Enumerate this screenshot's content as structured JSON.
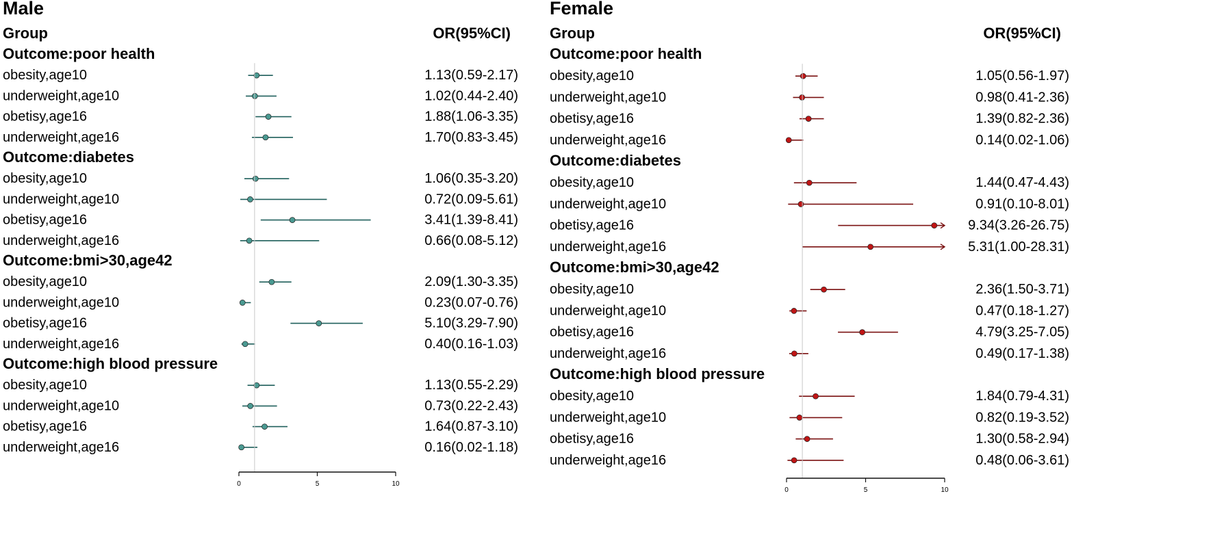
{
  "chart_data": [
    {
      "type": "forest",
      "title": "Male",
      "group_header": "Group",
      "value_header": "OR(95%CI)",
      "xlim": [
        0,
        10
      ],
      "ticks": [
        0,
        5,
        10
      ],
      "reference_line": 1,
      "marker_color": "#4a9a92",
      "line_color": "#1f5f5b",
      "sections": [
        {
          "title": "Outcome:poor health",
          "rows": [
            {
              "label": "obesity,age10",
              "or": 1.13,
              "lo": 0.59,
              "hi": 2.17,
              "text": "1.13(0.59-2.17)"
            },
            {
              "label": "underweight,age10",
              "or": 1.02,
              "lo": 0.44,
              "hi": 2.4,
              "text": "1.02(0.44-2.40)"
            },
            {
              "label": "obetisy,age16",
              "or": 1.88,
              "lo": 1.06,
              "hi": 3.35,
              "text": "1.88(1.06-3.35)"
            },
            {
              "label": "underweight,age16",
              "or": 1.7,
              "lo": 0.83,
              "hi": 3.45,
              "text": "1.70(0.83-3.45)"
            }
          ]
        },
        {
          "title": "Outcome:diabetes",
          "rows": [
            {
              "label": "obesity,age10",
              "or": 1.06,
              "lo": 0.35,
              "hi": 3.2,
              "text": "1.06(0.35-3.20)"
            },
            {
              "label": "underweight,age10",
              "or": 0.72,
              "lo": 0.09,
              "hi": 5.61,
              "text": "0.72(0.09-5.61)"
            },
            {
              "label": "obetisy,age16",
              "or": 3.41,
              "lo": 1.39,
              "hi": 8.41,
              "text": "3.41(1.39-8.41)"
            },
            {
              "label": "underweight,age16",
              "or": 0.66,
              "lo": 0.08,
              "hi": 5.12,
              "text": "0.66(0.08-5.12)"
            }
          ]
        },
        {
          "title": "Outcome:bmi>30,age42",
          "rows": [
            {
              "label": "obesity,age10",
              "or": 2.09,
              "lo": 1.3,
              "hi": 3.35,
              "text": "2.09(1.30-3.35)"
            },
            {
              "label": "underweight,age10",
              "or": 0.23,
              "lo": 0.07,
              "hi": 0.76,
              "text": "0.23(0.07-0.76)"
            },
            {
              "label": "obetisy,age16",
              "or": 5.1,
              "lo": 3.29,
              "hi": 7.9,
              "text": "5.10(3.29-7.90)"
            },
            {
              "label": "underweight,age16",
              "or": 0.4,
              "lo": 0.16,
              "hi": 1.03,
              "text": "0.40(0.16-1.03)"
            }
          ]
        },
        {
          "title": "Outcome:high blood pressure",
          "rows": [
            {
              "label": "obesity,age10",
              "or": 1.13,
              "lo": 0.55,
              "hi": 2.29,
              "text": "1.13(0.55-2.29)"
            },
            {
              "label": "underweight,age10",
              "or": 0.73,
              "lo": 0.22,
              "hi": 2.43,
              "text": "0.73(0.22-2.43)"
            },
            {
              "label": "obetisy,age16",
              "or": 1.64,
              "lo": 0.87,
              "hi": 3.1,
              "text": "1.64(0.87-3.10)"
            },
            {
              "label": "underweight,age16",
              "or": 0.16,
              "lo": 0.02,
              "hi": 1.18,
              "text": "0.16(0.02-1.18)"
            }
          ]
        }
      ]
    },
    {
      "type": "forest",
      "title": "Female",
      "group_header": "Group",
      "value_header": "OR(95%CI)",
      "xlim": [
        0,
        10
      ],
      "ticks": [
        0,
        5,
        10
      ],
      "reference_line": 1,
      "marker_color": "#c01515",
      "line_color": "#7a1010",
      "sections": [
        {
          "title": "Outcome:poor health",
          "rows": [
            {
              "label": "obesity,age10",
              "or": 1.05,
              "lo": 0.56,
              "hi": 1.97,
              "text": "1.05(0.56-1.97)"
            },
            {
              "label": "underweight,age10",
              "or": 0.98,
              "lo": 0.41,
              "hi": 2.36,
              "text": "0.98(0.41-2.36)"
            },
            {
              "label": "obetisy,age16",
              "or": 1.39,
              "lo": 0.82,
              "hi": 2.36,
              "text": "1.39(0.82-2.36)"
            },
            {
              "label": "underweight,age16",
              "or": 0.14,
              "lo": 0.02,
              "hi": 1.06,
              "text": "0.14(0.02-1.06)"
            }
          ]
        },
        {
          "title": "Outcome:diabetes",
          "rows": [
            {
              "label": "obesity,age10",
              "or": 1.44,
              "lo": 0.47,
              "hi": 4.43,
              "text": "1.44(0.47-4.43)"
            },
            {
              "label": "underweight,age10",
              "or": 0.91,
              "lo": 0.1,
              "hi": 8.01,
              "text": "0.91(0.10-8.01)"
            },
            {
              "label": "obetisy,age16",
              "or": 9.34,
              "lo": 3.26,
              "hi": 26.75,
              "text": "9.34(3.26-26.75)"
            },
            {
              "label": "underweight,age16",
              "or": 5.31,
              "lo": 1.0,
              "hi": 28.31,
              "text": "5.31(1.00-28.31)"
            }
          ]
        },
        {
          "title": "Outcome:bmi>30,age42",
          "rows": [
            {
              "label": "obesity,age10",
              "or": 2.36,
              "lo": 1.5,
              "hi": 3.71,
              "text": "2.36(1.50-3.71)"
            },
            {
              "label": "underweight,age10",
              "or": 0.47,
              "lo": 0.18,
              "hi": 1.27,
              "text": "0.47(0.18-1.27)"
            },
            {
              "label": "obetisy,age16",
              "or": 4.79,
              "lo": 3.25,
              "hi": 7.05,
              "text": "4.79(3.25-7.05)"
            },
            {
              "label": "underweight,age16",
              "or": 0.49,
              "lo": 0.17,
              "hi": 1.38,
              "text": "0.49(0.17-1.38)"
            }
          ]
        },
        {
          "title": "Outcome:high blood pressure",
          "rows": [
            {
              "label": "obesity,age10",
              "or": 1.84,
              "lo": 0.79,
              "hi": 4.31,
              "text": "1.84(0.79-4.31)"
            },
            {
              "label": "underweight,age10",
              "or": 0.82,
              "lo": 0.19,
              "hi": 3.52,
              "text": "0.82(0.19-3.52)"
            },
            {
              "label": "obetisy,age16",
              "or": 1.3,
              "lo": 0.58,
              "hi": 2.94,
              "text": "1.30(0.58-2.94)"
            },
            {
              "label": "underweight,age16",
              "or": 0.48,
              "lo": 0.06,
              "hi": 3.61,
              "text": "0.48(0.06-3.61)"
            }
          ]
        }
      ]
    }
  ]
}
